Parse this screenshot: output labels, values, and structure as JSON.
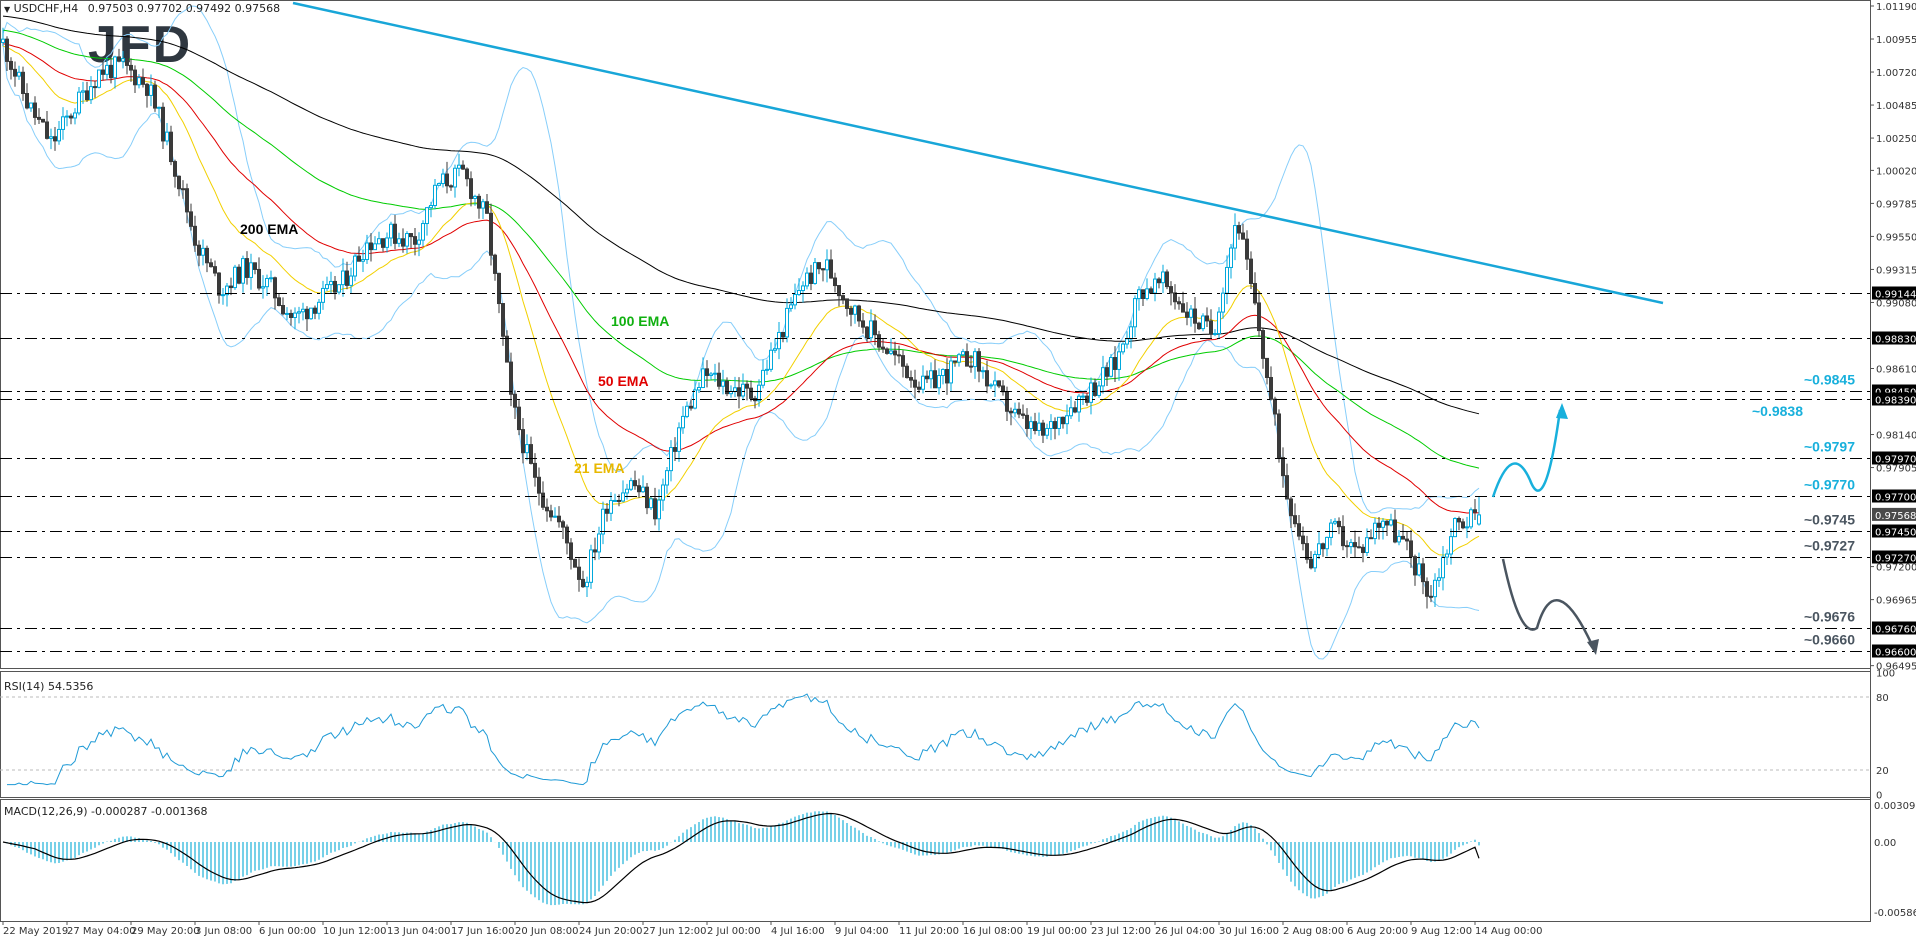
{
  "header": {
    "symbol": "USDCHF,H4",
    "ohlc": "0.97503 0.97702 0.97492 0.97568"
  },
  "logo": "JFD",
  "colors": {
    "bull_candle_border": "#00a8dc",
    "bear_candle": "#3a3a3a",
    "ema21": "#f2d000",
    "ema50": "#e00000",
    "ema100": "#00cc00",
    "ema200": "#000000",
    "bollinger": "#87cefa",
    "trendline": "#18a6d8",
    "level_label_up": "#18b0dc",
    "level_label_down": "#4a5560"
  },
  "chart_data": [
    {
      "type": "candlestick",
      "title": "USDCHF,H4",
      "last_bar": {
        "open": 0.97503,
        "high": 0.97702,
        "low": 0.97492,
        "close": 0.97568
      },
      "closes": [
        1.0093,
        1.005,
        1.0021,
        1.0048,
        1.0073,
        1.0076,
        1.0062,
        1.0011,
        0.995,
        0.9917,
        0.9933,
        0.992,
        0.9896,
        0.9909,
        0.9921,
        0.995,
        0.9957,
        0.9952,
        0.9992,
        1.0,
        0.9967,
        0.9837,
        0.9779,
        0.975,
        0.9707,
        0.9768,
        0.978,
        0.9759,
        0.9822,
        0.9857,
        0.9848,
        0.9842,
        0.988,
        0.9922,
        0.9935,
        0.9905,
        0.9885,
        0.9866,
        0.9848,
        0.9858,
        0.987,
        0.9845,
        0.9824,
        0.9813,
        0.9833,
        0.9847,
        0.9865,
        0.9917,
        0.9922,
        0.99,
        0.9886,
        0.997,
        0.988,
        0.9776,
        0.9724,
        0.9746,
        0.973,
        0.9756,
        0.9733,
        0.97,
        0.975,
        0.97568
      ],
      "ylim": [
        0.96495,
        1.0119
      ],
      "y_ticks": [
        "1.01190",
        "1.00955",
        "1.00720",
        "1.00485",
        "1.00250",
        "1.00020",
        "0.99785",
        "0.99550",
        "0.99315",
        "0.99080",
        "0.98610",
        "0.98140",
        "0.97905",
        "0.97200",
        "0.96965",
        "0.96495"
      ],
      "current_price": "0.97568",
      "levels": [
        {
          "price": "0.99144"
        },
        {
          "price": "0.98830"
        },
        {
          "price": "0.98450",
          "label": "~0.9845",
          "side": "up"
        },
        {
          "price": "0.98390",
          "label": "~0.9838",
          "side": "up"
        },
        {
          "price": "0.97970",
          "label": "~0.9797",
          "side": "up"
        },
        {
          "price": "0.97700",
          "label": "~0.9770",
          "side": "up"
        },
        {
          "price": "0.97450",
          "label": "~0.9745",
          "side": "down"
        },
        {
          "price": "0.97270",
          "label": "~0.9727",
          "side": "down"
        },
        {
          "price": "0.96760",
          "label": "~0.9676",
          "side": "down"
        },
        {
          "price": "0.96600",
          "label": "~0.9660",
          "side": "down"
        }
      ],
      "indicators": [
        {
          "name": "200 EMA",
          "period": 200
        },
        {
          "name": "100 EMA",
          "period": 100
        },
        {
          "name": "50 EMA",
          "period": 50
        },
        {
          "name": "21 EMA",
          "period": 21
        },
        {
          "name": "Bollinger Bands",
          "period": 20,
          "deviation": 2
        }
      ],
      "trendline": {
        "from_price": 1.0121,
        "to_price": 0.9903
      }
    },
    {
      "type": "line",
      "title": "RSI(14) 54.5356",
      "ylim": [
        0,
        100
      ],
      "y_ticks": [
        "100",
        "80",
        "20",
        "0"
      ],
      "last_value": 54.5356
    },
    {
      "type": "bar",
      "title": "MACD(12,26,9) -0.000287 -0.001368",
      "ylim": [
        -0.005864,
        0.003091
      ],
      "y_ticks": [
        "0.003091",
        "0.00",
        "-0.005864"
      ],
      "main": -0.000287,
      "signal": -0.001368
    }
  ],
  "x_axis": {
    "ticks": [
      "22 May 2019",
      "27 May 04:00",
      "29 May 20:00",
      "3 Jun 08:00",
      "6 Jun 00:00",
      "10 Jun 12:00",
      "13 Jun 04:00",
      "17 Jun 16:00",
      "20 Jun 08:00",
      "24 Jun 20:00",
      "27 Jun 12:00",
      "2 Jul 00:00",
      "4 Jul 16:00",
      "9 Jul 04:00",
      "11 Jul 20:00",
      "16 Jul 08:00",
      "19 Jul 00:00",
      "23 Jul 12:00",
      "26 Jul 04:00",
      "30 Jul 16:00",
      "2 Aug 08:00",
      "6 Aug 20:00",
      "9 Aug 12:00",
      "14 Aug 00:00"
    ]
  }
}
